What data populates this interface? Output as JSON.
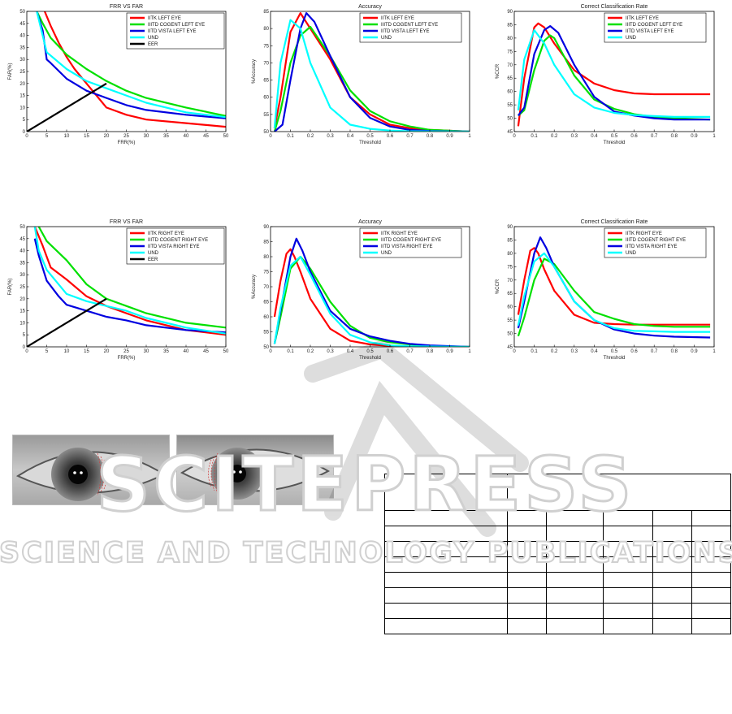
{
  "colors": {
    "red": "#ff0000",
    "green": "#00e000",
    "blue": "#0000e0",
    "cyan": "#00ffff",
    "black": "#000000"
  },
  "watermark": {
    "word": "SCITEPRESS",
    "tagline": "SCIENCE AND TECHNOLOGY PUBLICATIONS"
  },
  "chart_data": [
    {
      "type": "line",
      "title": "FRR VS FAR",
      "xlabel": "FRR(%)",
      "ylabel": "FAR(%)",
      "xlim": [
        0,
        50
      ],
      "ylim": [
        0,
        50
      ],
      "xticks": [
        0,
        5,
        10,
        15,
        20,
        25,
        30,
        35,
        40,
        45,
        50
      ],
      "xticklabels": [
        "0",
        "5",
        "10",
        "15",
        "20",
        "25",
        "30",
        "35",
        "40",
        "45",
        "50"
      ],
      "yticks": [
        0,
        5,
        10,
        15,
        20,
        25,
        30,
        35,
        40,
        45,
        50
      ],
      "yticklabels": [
        "0",
        "5",
        "10",
        "15",
        "20",
        "25",
        "30",
        "35",
        "40",
        "45",
        "50"
      ],
      "legend": "top-right",
      "series": [
        {
          "name": "IITK LEFT EYE",
          "color": "red",
          "x": [
            4.5,
            6,
            8,
            10,
            12,
            15,
            20,
            25,
            30,
            40,
            50
          ],
          "y": [
            50,
            44,
            37,
            31,
            26,
            20,
            10,
            7,
            5,
            3.5,
            2
          ]
        },
        {
          "name": "IIITD COGENT LEFT EYE",
          "color": "green",
          "x": [
            2.5,
            4,
            6,
            10,
            15,
            20,
            25,
            30,
            40,
            50
          ],
          "y": [
            50,
            45,
            39,
            32,
            26,
            21,
            17,
            14,
            10,
            6.5
          ]
        },
        {
          "name": "IITD VISTA LEFT EYE",
          "color": "blue",
          "x": [
            2.5,
            4,
            5,
            6,
            10,
            15,
            20,
            25,
            30,
            40,
            50
          ],
          "y": [
            50,
            42,
            30,
            28.5,
            22,
            17,
            14,
            11,
            9,
            7,
            5.5
          ]
        },
        {
          "name": "UND",
          "color": "cyan",
          "x": [
            2.5,
            5,
            10,
            15,
            20,
            25,
            30,
            40,
            50
          ],
          "y": [
            50,
            33,
            26,
            21,
            18,
            15,
            12,
            8,
            6
          ]
        },
        {
          "name": "EER",
          "color": "black",
          "x": [
            0,
            20
          ],
          "y": [
            0,
            20
          ]
        }
      ]
    },
    {
      "type": "line",
      "title": "Accuracy",
      "xlabel": "Threshold",
      "ylabel": "%Accuracy",
      "xlim": [
        0,
        1
      ],
      "ylim": [
        50,
        85
      ],
      "xticks": [
        0,
        0.1,
        0.2,
        0.3,
        0.4,
        0.5,
        0.6,
        0.7,
        0.8,
        0.9,
        1
      ],
      "xticklabels": [
        "0",
        "0.1",
        "0.2",
        "0.3",
        "0.4",
        "0.5",
        "0.6",
        "0.7",
        "0.8",
        "0.9",
        "1"
      ],
      "yticks": [
        50,
        55,
        60,
        65,
        70,
        75,
        80,
        85
      ],
      "yticklabels": [
        "50",
        "55",
        "60",
        "65",
        "70",
        "75",
        "80",
        "85"
      ],
      "legend": "top-right",
      "series": [
        {
          "name": "IITK LEFT EYE",
          "color": "red",
          "x": [
            0.02,
            0.05,
            0.1,
            0.15,
            0.2,
            0.3,
            0.4,
            0.5,
            0.6,
            0.7,
            0.8,
            1
          ],
          "y": [
            51,
            60,
            79,
            84.5,
            80,
            71,
            60,
            55,
            52,
            51,
            50.5,
            50
          ]
        },
        {
          "name": "IIITD COGENT LEFT EYE",
          "color": "green",
          "x": [
            0.02,
            0.05,
            0.1,
            0.15,
            0.2,
            0.3,
            0.4,
            0.5,
            0.6,
            0.7,
            0.8,
            1
          ],
          "y": [
            50,
            56,
            70,
            78,
            80.5,
            72,
            62,
            56,
            53,
            51.5,
            50.5,
            50
          ]
        },
        {
          "name": "IITD VISTA LEFT EYE",
          "color": "blue",
          "x": [
            0.02,
            0.06,
            0.1,
            0.15,
            0.18,
            0.22,
            0.3,
            0.4,
            0.5,
            0.6,
            0.7,
            0.8,
            1
          ],
          "y": [
            50,
            52,
            65,
            80,
            84.5,
            82,
            72,
            60,
            54,
            51.5,
            50.5,
            50.2,
            50
          ]
        },
        {
          "name": "UND",
          "color": "cyan",
          "x": [
            0.02,
            0.05,
            0.1,
            0.15,
            0.2,
            0.3,
            0.4,
            0.5,
            0.6,
            0.7,
            1
          ],
          "y": [
            51,
            70,
            82.5,
            80,
            70,
            57,
            52,
            50.8,
            50.3,
            50.1,
            50
          ]
        }
      ]
    },
    {
      "type": "line",
      "title": "Correct Classification Rate",
      "xlabel": "Threshold",
      "ylabel": "%CCR",
      "xlim": [
        0,
        1
      ],
      "ylim": [
        45,
        90
      ],
      "xticks": [
        0,
        0.1,
        0.2,
        0.3,
        0.4,
        0.5,
        0.6,
        0.7,
        0.8,
        0.9,
        1
      ],
      "xticklabels": [
        "0",
        "0.1",
        "0.2",
        "0.3",
        "0.4",
        "0.5",
        "0.6",
        "0.7",
        "0.8",
        "0.9",
        "1"
      ],
      "yticks": [
        45,
        50,
        55,
        60,
        65,
        70,
        75,
        80,
        85,
        90
      ],
      "yticklabels": [
        "45",
        "50",
        "55",
        "60",
        "65",
        "70",
        "75",
        "80",
        "85",
        "90"
      ],
      "legend": "top-right",
      "series": [
        {
          "name": "IITK LEFT EYE",
          "color": "red",
          "x": [
            0.02,
            0.05,
            0.1,
            0.12,
            0.15,
            0.2,
            0.3,
            0.4,
            0.5,
            0.6,
            0.7,
            0.8,
            0.98
          ],
          "y": [
            47,
            65,
            84,
            85.5,
            84,
            78,
            68,
            63,
            60.5,
            59.3,
            59,
            59,
            59
          ]
        },
        {
          "name": "IIITD COGENT LEFT EYE",
          "color": "green",
          "x": [
            0.02,
            0.05,
            0.1,
            0.15,
            0.18,
            0.2,
            0.3,
            0.4,
            0.5,
            0.6,
            0.7,
            0.8,
            0.98
          ],
          "y": [
            51,
            53,
            68,
            79,
            81,
            80,
            66,
            57,
            53.5,
            51.5,
            50.5,
            50,
            49.5
          ]
        },
        {
          "name": "IITD VISTA LEFT EYE",
          "color": "blue",
          "x": [
            0.02,
            0.05,
            0.1,
            0.15,
            0.18,
            0.22,
            0.3,
            0.4,
            0.5,
            0.6,
            0.7,
            0.8,
            0.98
          ],
          "y": [
            51,
            54,
            74,
            83,
            84.5,
            82,
            70,
            58,
            52.5,
            51,
            50,
            49.5,
            49.5
          ]
        },
        {
          "name": "UND",
          "color": "cyan",
          "x": [
            0.02,
            0.05,
            0.1,
            0.15,
            0.2,
            0.3,
            0.4,
            0.5,
            0.6,
            0.7,
            0.8,
            0.98
          ],
          "y": [
            53,
            72,
            83,
            78,
            70,
            59,
            54,
            52,
            51.2,
            50.8,
            50.5,
            50.5
          ]
        }
      ]
    },
    {
      "type": "line",
      "title": "FRR VS FAR",
      "xlabel": "FRR(%)",
      "ylabel": "FAR(%)",
      "xlim": [
        0,
        50
      ],
      "ylim": [
        0,
        50
      ],
      "xticks": [
        0,
        5,
        10,
        15,
        20,
        25,
        30,
        35,
        40,
        45,
        50
      ],
      "xticklabels": [
        "0",
        "5",
        "10",
        "15",
        "20",
        "25",
        "30",
        "35",
        "40",
        "45",
        "50"
      ],
      "yticks": [
        0,
        5,
        10,
        15,
        20,
        25,
        30,
        35,
        40,
        45,
        50
      ],
      "yticklabels": [
        "0",
        "5",
        "10",
        "15",
        "20",
        "25",
        "30",
        "35",
        "40",
        "45",
        "50"
      ],
      "legend": "top-right",
      "series": [
        {
          "name": "IITK RIGHT EYE",
          "color": "red",
          "x": [
            2,
            4,
            6,
            10,
            15,
            20,
            25,
            30,
            40,
            50
          ],
          "y": [
            50,
            42,
            33,
            28,
            21,
            17,
            14,
            11,
            7,
            5
          ]
        },
        {
          "name": "IIITD COGENT RIGHT EYE",
          "color": "green",
          "x": [
            3,
            5,
            10,
            15,
            20,
            25,
            30,
            40,
            50
          ],
          "y": [
            50,
            44,
            36,
            26,
            20,
            17,
            14,
            10,
            8
          ]
        },
        {
          "name": "IITD VISTA RIGHT EYE",
          "color": "blue",
          "x": [
            2,
            3,
            5,
            8,
            10,
            15,
            20,
            25,
            30,
            40,
            50
          ],
          "y": [
            45,
            38,
            27.5,
            21,
            17.5,
            15,
            12.5,
            11,
            9,
            7,
            6
          ]
        },
        {
          "name": "UND",
          "color": "cyan",
          "x": [
            2,
            3,
            5,
            10,
            15,
            20,
            25,
            30,
            40,
            50
          ],
          "y": [
            50,
            40,
            32,
            22,
            19,
            17,
            15,
            12,
            8,
            5.5
          ]
        },
        {
          "name": "EER",
          "color": "black",
          "x": [
            0,
            20
          ],
          "y": [
            0,
            20
          ]
        }
      ]
    },
    {
      "type": "line",
      "title": "Accuracy",
      "xlabel": "Threshold",
      "ylabel": "%Accuracy",
      "xlim": [
        0,
        1
      ],
      "ylim": [
        50,
        90
      ],
      "xticks": [
        0,
        0.1,
        0.2,
        0.3,
        0.4,
        0.5,
        0.6,
        0.7,
        0.8,
        0.9,
        1
      ],
      "xticklabels": [
        "0",
        "0.1",
        "0.2",
        "0.3",
        "0.4",
        "0.5",
        "0.6",
        "0.7",
        "0.8",
        "0.9",
        "1"
      ],
      "yticks": [
        50,
        55,
        60,
        65,
        70,
        75,
        80,
        85,
        90
      ],
      "yticklabels": [
        "50",
        "55",
        "60",
        "65",
        "70",
        "75",
        "80",
        "85",
        "90"
      ],
      "legend": "top-right",
      "series": [
        {
          "name": "IITK RIGHT EYE",
          "color": "red",
          "x": [
            0.02,
            0.05,
            0.08,
            0.1,
            0.12,
            0.15,
            0.2,
            0.3,
            0.4,
            0.5,
            0.6,
            0.7,
            1
          ],
          "y": [
            60,
            72,
            81,
            82.5,
            80,
            75,
            66,
            56,
            52,
            50.8,
            50.3,
            50.1,
            50
          ]
        },
        {
          "name": "IIITD COGENT RIGHT EYE",
          "color": "green",
          "x": [
            0.02,
            0.05,
            0.1,
            0.15,
            0.2,
            0.3,
            0.4,
            0.5,
            0.6,
            0.7,
            0.8,
            1
          ],
          "y": [
            51,
            60,
            76,
            80,
            76,
            65,
            57,
            53,
            51.5,
            50.8,
            50.3,
            50
          ]
        },
        {
          "name": "IITD VISTA RIGHT EYE",
          "color": "blue",
          "x": [
            0.02,
            0.05,
            0.1,
            0.13,
            0.16,
            0.2,
            0.3,
            0.4,
            0.5,
            0.6,
            0.7,
            0.8,
            1
          ],
          "y": [
            51,
            62,
            80,
            86,
            82,
            75,
            62,
            56,
            53.5,
            52,
            51,
            50.5,
            50
          ]
        },
        {
          "name": "UND",
          "color": "cyan",
          "x": [
            0.02,
            0.05,
            0.1,
            0.15,
            0.2,
            0.3,
            0.4,
            0.5,
            0.6,
            0.7,
            1
          ],
          "y": [
            51,
            63,
            77,
            80,
            74,
            61,
            54,
            51.5,
            50.5,
            50.2,
            50
          ]
        }
      ]
    },
    {
      "type": "line",
      "title": "Correct Classification Rate",
      "xlabel": "Threshold",
      "ylabel": "%CCR",
      "xlim": [
        0,
        1
      ],
      "ylim": [
        45,
        90
      ],
      "xticks": [
        0,
        0.1,
        0.2,
        0.3,
        0.4,
        0.5,
        0.6,
        0.7,
        0.8,
        0.9,
        1
      ],
      "xticklabels": [
        "0",
        "0.1",
        "0.2",
        "0.3",
        "0.4",
        "0.5",
        "0.6",
        "0.7",
        "0.8",
        "0.9",
        "1"
      ],
      "yticks": [
        45,
        50,
        55,
        60,
        65,
        70,
        75,
        80,
        85,
        90
      ],
      "yticklabels": [
        "45",
        "50",
        "55",
        "60",
        "65",
        "70",
        "75",
        "80",
        "85",
        "90"
      ],
      "legend": "top-right",
      "series": [
        {
          "name": "IITK RIGHT EYE",
          "color": "red",
          "x": [
            0.02,
            0.05,
            0.08,
            0.1,
            0.12,
            0.15,
            0.2,
            0.3,
            0.4,
            0.5,
            0.6,
            0.8,
            0.98
          ],
          "y": [
            57,
            70,
            81,
            82,
            80,
            74,
            66,
            57,
            54,
            53.5,
            53.3,
            53.3,
            53.3
          ]
        },
        {
          "name": "IIITD COGENT RIGHT EYE",
          "color": "green",
          "x": [
            0.02,
            0.05,
            0.1,
            0.15,
            0.2,
            0.3,
            0.4,
            0.5,
            0.6,
            0.7,
            0.8,
            0.98
          ],
          "y": [
            49,
            56,
            70,
            78,
            76,
            66,
            58,
            55.5,
            53.5,
            52.8,
            52.5,
            52.5
          ]
        },
        {
          "name": "IITD VISTA RIGHT EYE",
          "color": "blue",
          "x": [
            0.02,
            0.05,
            0.1,
            0.13,
            0.16,
            0.2,
            0.3,
            0.4,
            0.5,
            0.6,
            0.7,
            0.8,
            0.98
          ],
          "y": [
            52,
            62,
            80,
            86,
            82,
            75,
            62,
            55,
            51.5,
            50,
            49.2,
            48.8,
            48.5
          ]
        },
        {
          "name": "UND",
          "color": "cyan",
          "x": [
            0.02,
            0.05,
            0.1,
            0.15,
            0.2,
            0.3,
            0.4,
            0.5,
            0.6,
            0.7,
            0.8,
            0.98
          ],
          "y": [
            53,
            64,
            77,
            80,
            75,
            62,
            55,
            52,
            51,
            50.8,
            50.6,
            50.6
          ]
        }
      ]
    }
  ]
}
